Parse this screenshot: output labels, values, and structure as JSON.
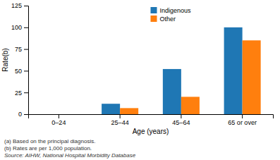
{
  "chart_data": {
    "type": "bar",
    "categories": [
      "0–24",
      "25–44",
      "45–64",
      "65 or over"
    ],
    "series": [
      {
        "name": "Indigenous",
        "values": [
          0,
          12,
          52,
          100
        ]
      },
      {
        "name": "Other",
        "values": [
          0,
          7,
          20,
          85
        ]
      }
    ],
    "xlabel": "Age (years)",
    "ylabel": "Rate(b)",
    "ylim": [
      0,
      125
    ],
    "yticks": [
      0,
      25,
      50,
      75,
      100,
      125
    ],
    "legend": "top",
    "grid": false,
    "annotations": [
      "(a) Based on the principal diagnosis.",
      "(b) Rates are per 1,000 population.",
      "Source: AIHW, National Hospital Morbidity Database"
    ]
  }
}
